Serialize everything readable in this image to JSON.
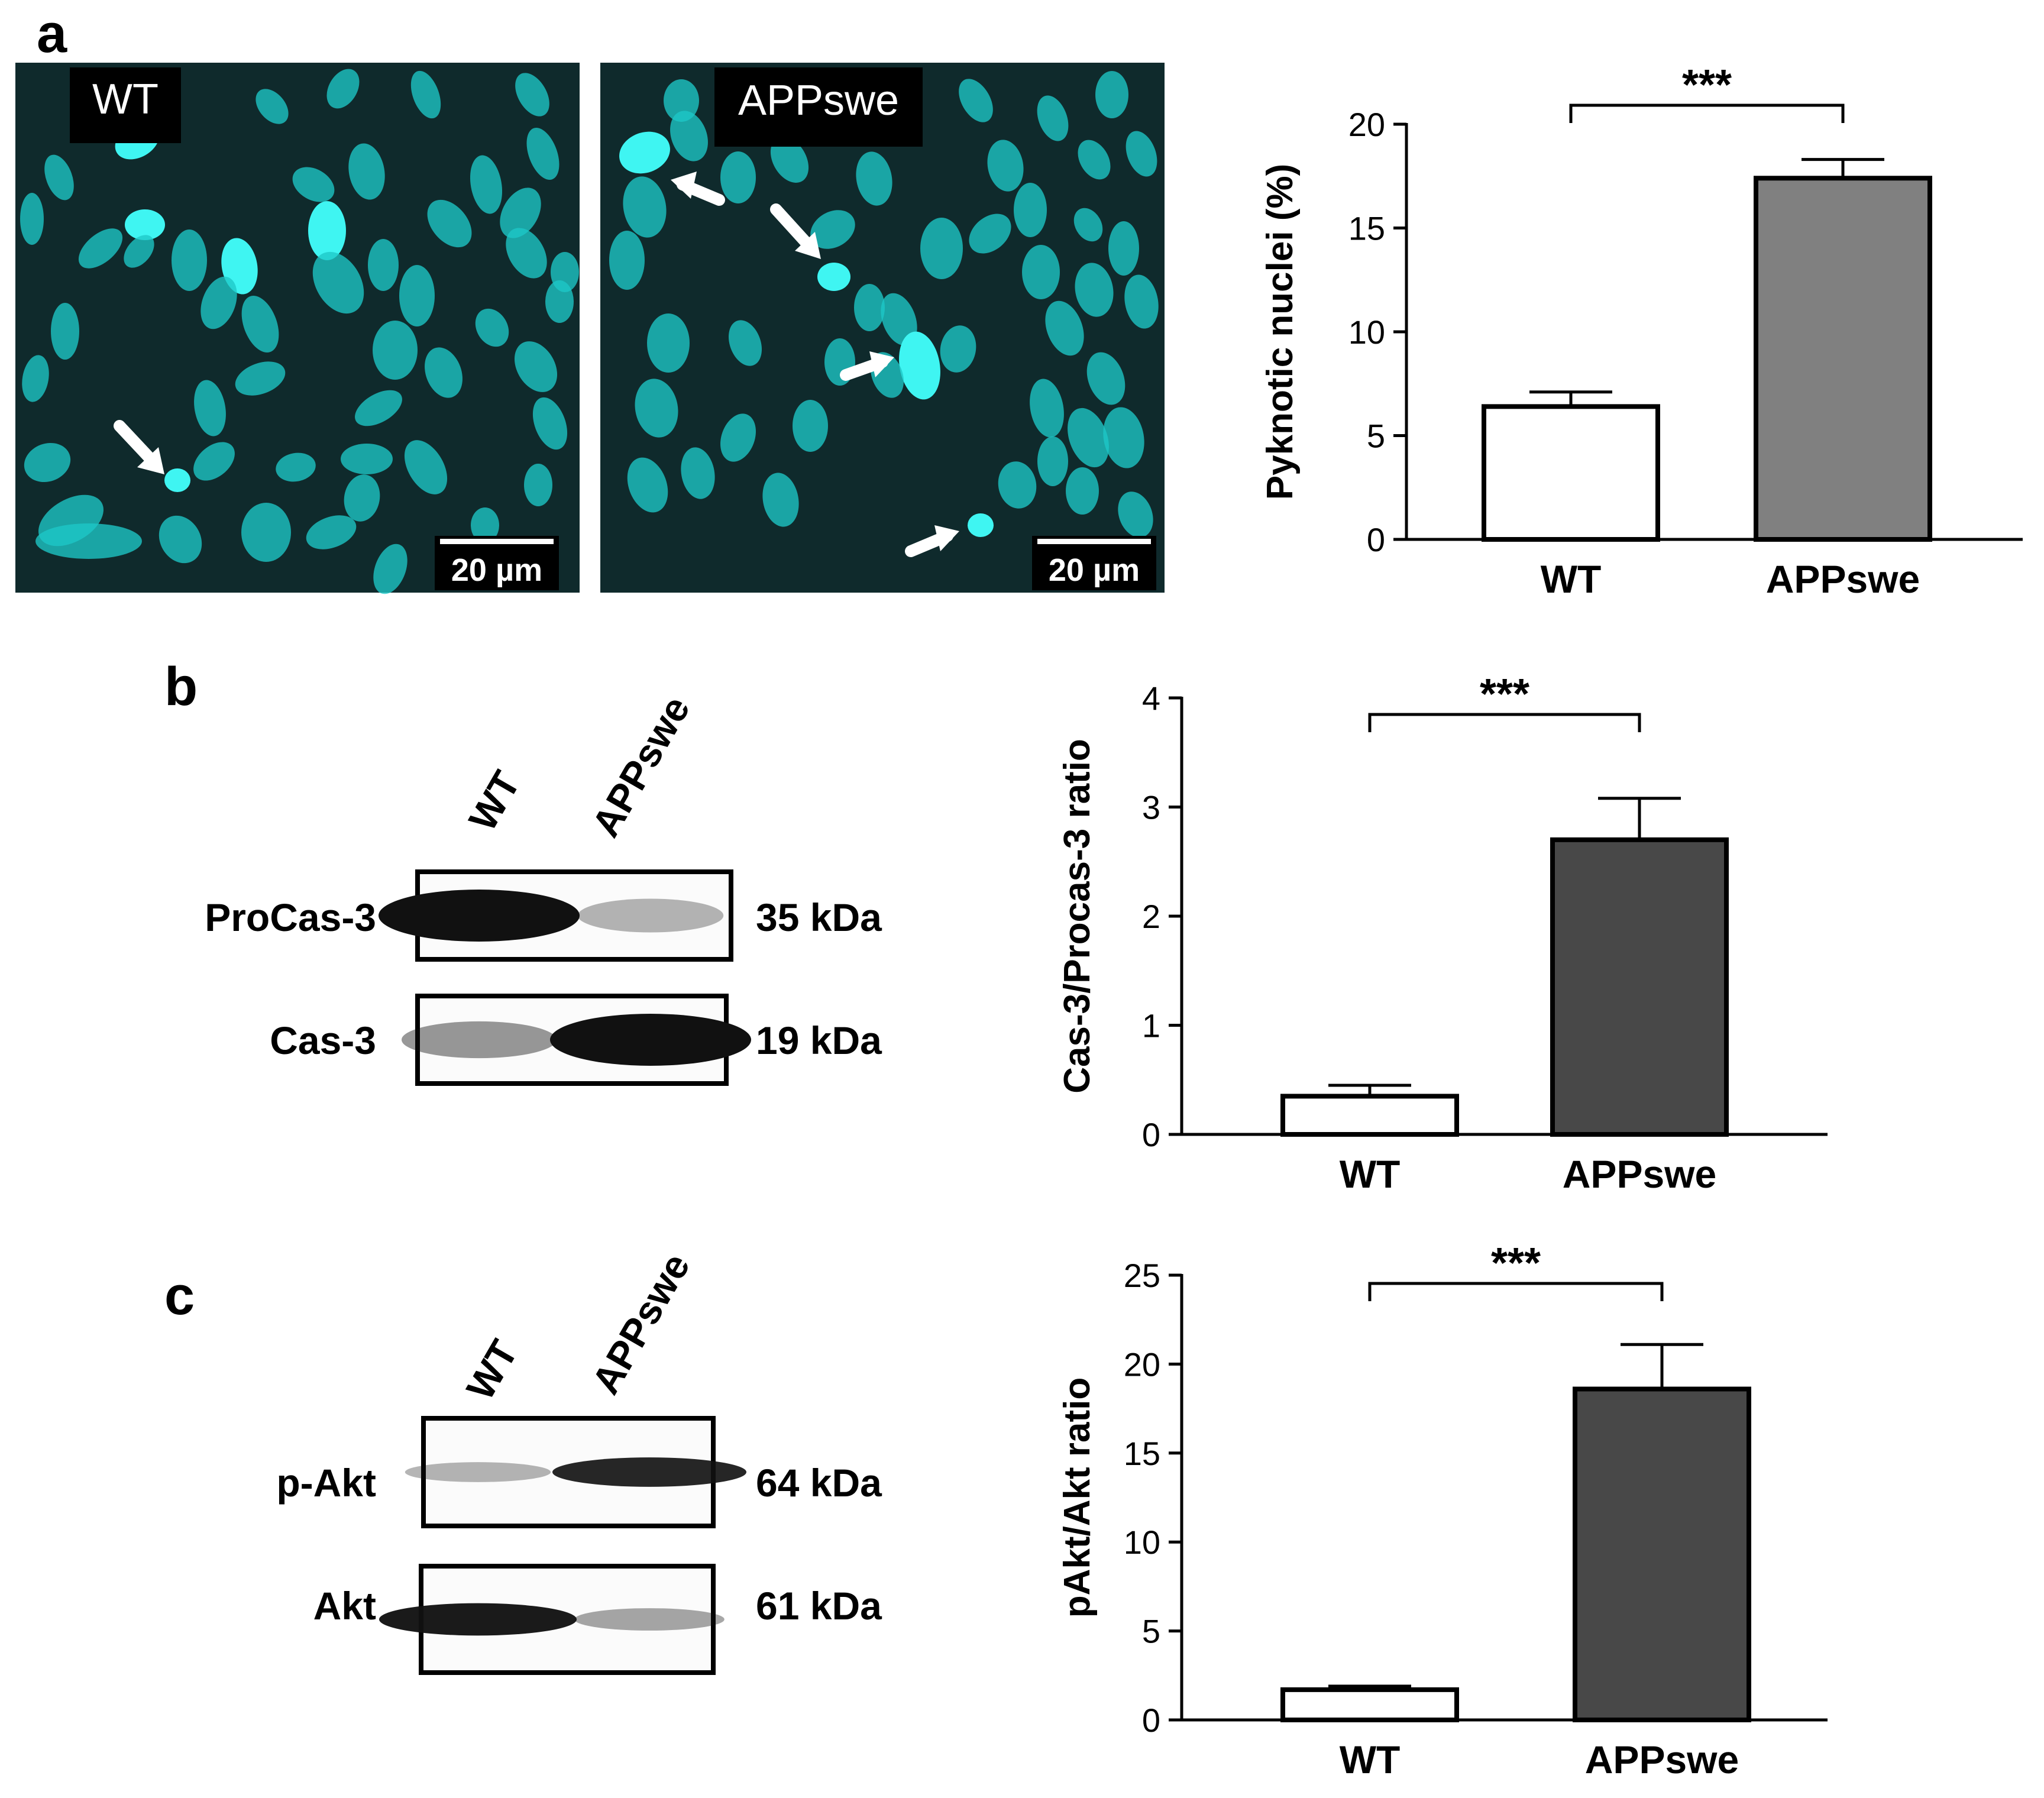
{
  "panel_labels": {
    "a": "a",
    "b": "b",
    "c": "c"
  },
  "colors": {
    "micrograph_bg": "#0f2a2c",
    "nucleus": "#1ec8c8",
    "nucleus_bright": "#3ff5f2",
    "label_box": "#000000",
    "bar_white": "#ffffff",
    "bar_gray_light": "#808080",
    "bar_gray_dark": "#484848",
    "band": "#111111"
  },
  "panel_a": {
    "images": [
      {
        "label": "WT",
        "scale_bar": "20 µm"
      },
      {
        "label": "APPswe",
        "scale_bar": "20 µm"
      }
    ],
    "significance": "***"
  },
  "panel_b": {
    "lanes": [
      "WT",
      "APPswe"
    ],
    "blots": [
      {
        "name": "ProCas-3",
        "size": "35 kDa",
        "bands": [
          1.0,
          0.22
        ]
      },
      {
        "name": "Cas-3",
        "size": "19 kDa",
        "bands": [
          0.35,
          1.0
        ]
      }
    ],
    "significance": "***"
  },
  "panel_c": {
    "lanes": [
      "WT",
      "APPswe"
    ],
    "blots": [
      {
        "name": "p-Akt",
        "size": "64 kDa",
        "bands": [
          0.22,
          0.9
        ]
      },
      {
        "name": "Akt",
        "size": "61 kDa",
        "bands": [
          0.95,
          0.28
        ]
      }
    ],
    "significance": "***"
  },
  "chart_data": [
    {
      "type": "bar",
      "categories": [
        "WT",
        "APPswe"
      ],
      "values": [
        6.4,
        17.4
      ],
      "errors": [
        0.7,
        0.9
      ],
      "ylabel": "Pyknotic nuclei (%)",
      "ylim": [
        0,
        20
      ],
      "yticks": [
        0,
        5,
        10,
        15,
        20
      ],
      "bar_colors": [
        "#ffffff",
        "#808080"
      ],
      "annotation": "***"
    },
    {
      "type": "bar",
      "categories": [
        "WT",
        "APPswe"
      ],
      "values": [
        0.35,
        2.7
      ],
      "errors": [
        0.1,
        0.38
      ],
      "ylabel": "Cas-3/Procas-3 ratio",
      "ylim": [
        0,
        4
      ],
      "yticks": [
        0,
        1,
        2,
        3,
        4
      ],
      "bar_colors": [
        "#ffffff",
        "#484848"
      ],
      "annotation": "***"
    },
    {
      "type": "bar",
      "categories": [
        "WT",
        "APPswe"
      ],
      "values": [
        1.7,
        18.6
      ],
      "errors": [
        0.2,
        2.5
      ],
      "ylabel": "pAkt/Akt ratio",
      "ylim": [
        0,
        25
      ],
      "yticks": [
        0,
        5,
        10,
        15,
        20,
        25
      ],
      "bar_colors": [
        "#ffffff",
        "#484848"
      ],
      "annotation": "***"
    }
  ]
}
